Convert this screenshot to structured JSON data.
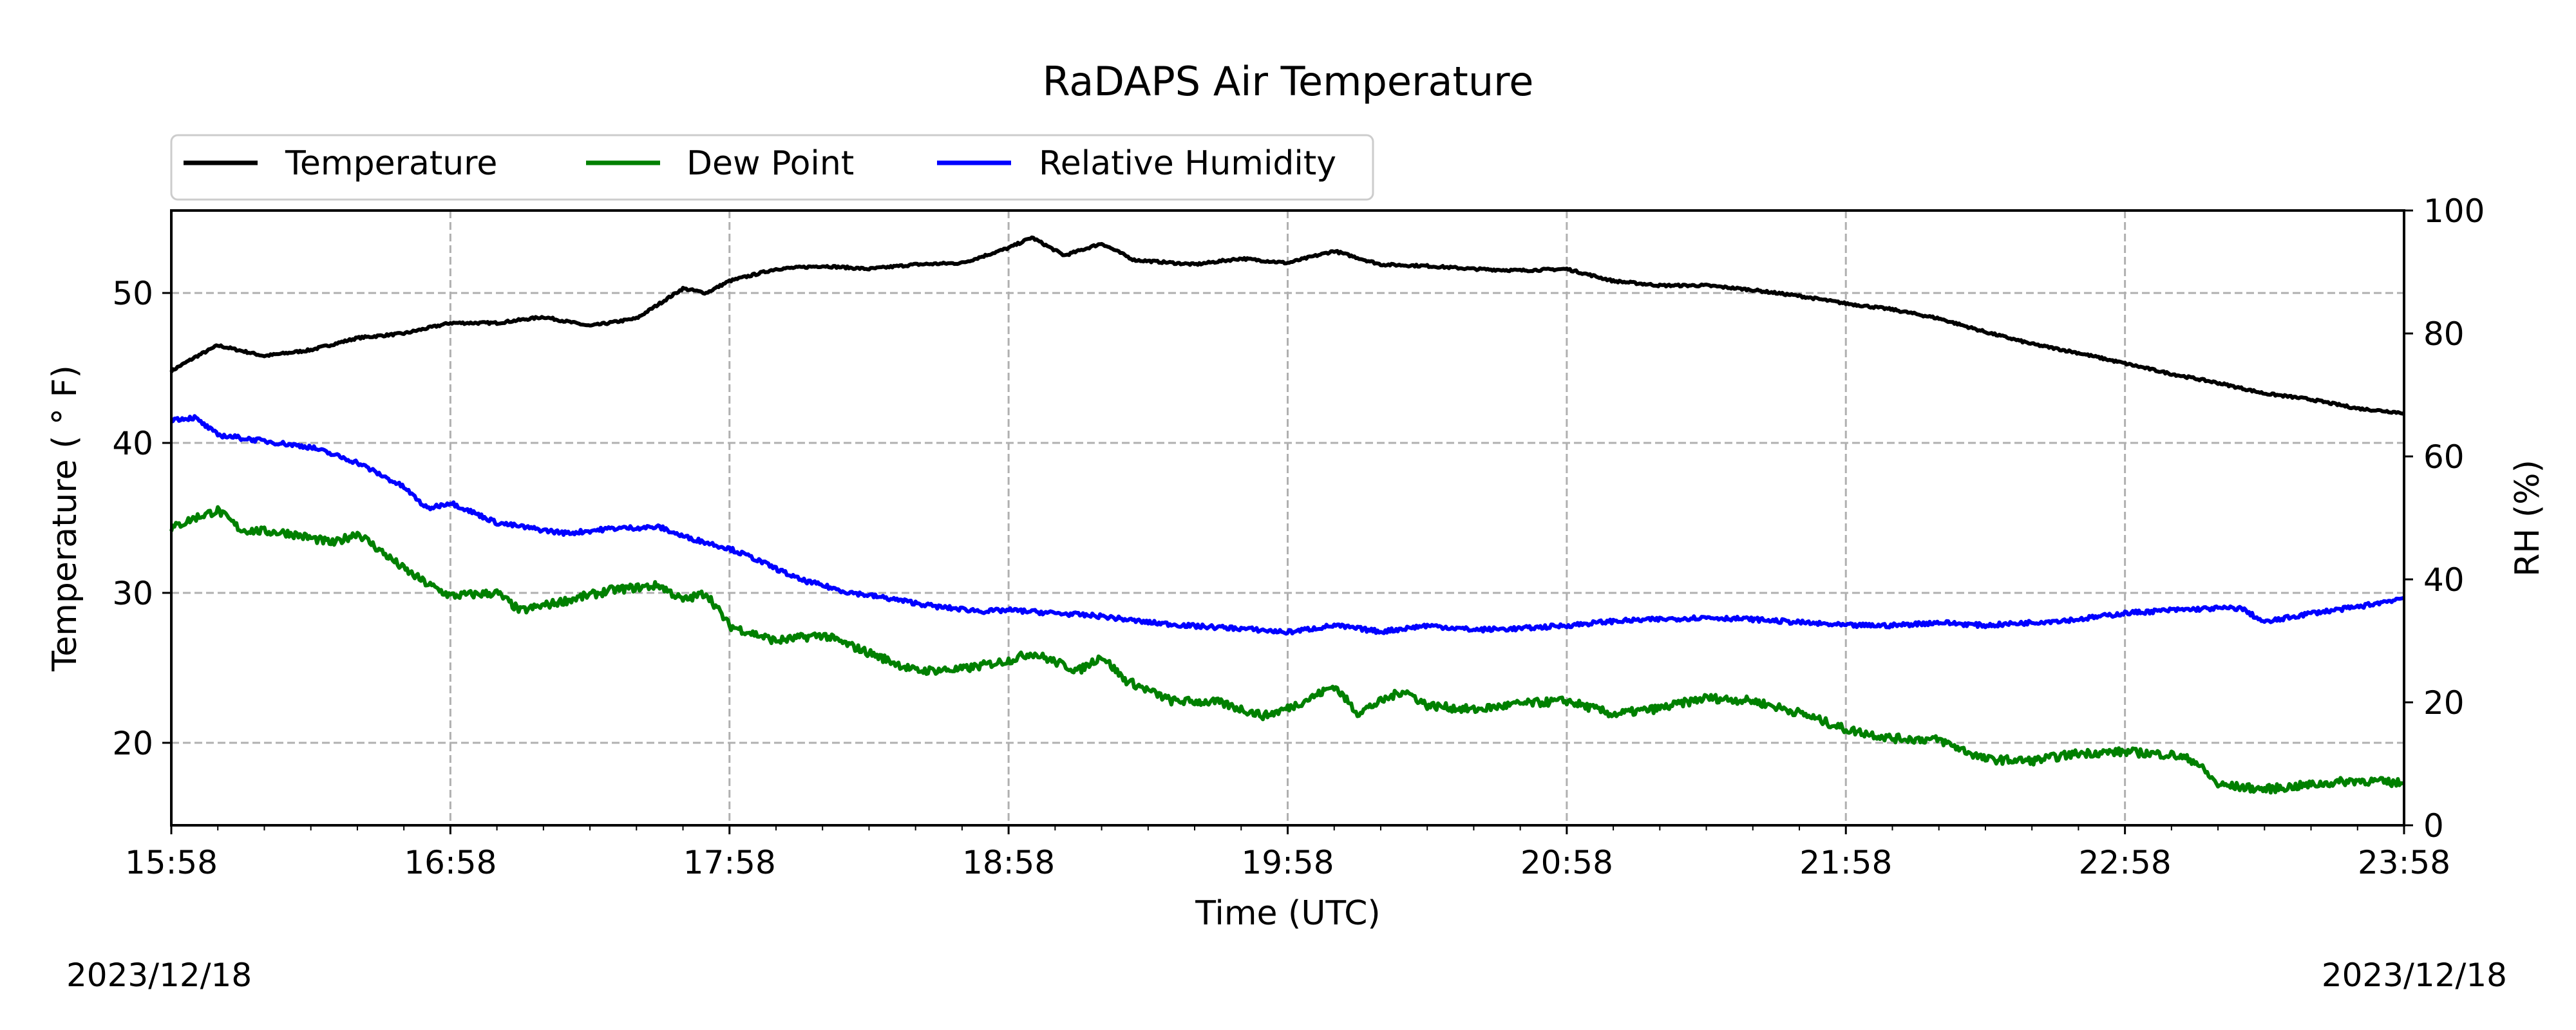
{
  "chart_data": {
    "type": "line",
    "title": "RaDAPS Air Temperature",
    "xlabel": "Time (UTC)",
    "ylabel": "Temperature ($^\\circ$F)",
    "ylabel_display": "Temperature ( ° F)",
    "y2label": "RH (%)",
    "x_ticks": [
      "15:58",
      "16:58",
      "17:58",
      "18:58",
      "19:58",
      "20:58",
      "21:58",
      "22:58",
      "23:58"
    ],
    "ylim": [
      14.5,
      55.5
    ],
    "y_ticks": [
      20,
      30,
      40,
      50
    ],
    "y2lim": [
      0,
      100
    ],
    "y2_ticks": [
      0,
      20,
      40,
      60,
      80,
      100
    ],
    "grid": true,
    "legend": {
      "placement": "above-left",
      "entries": [
        "Temperature",
        "Dew Point",
        "Relative Humidity"
      ]
    },
    "dates": {
      "left": "2023/12/18",
      "right": "2023/12/18"
    },
    "series": [
      {
        "name": "Temperature",
        "axis": "left",
        "color": "#000000",
        "points": [
          [
            "15:58",
            44.8
          ],
          [
            "16:03",
            45.7
          ],
          [
            "16:08",
            46.5
          ],
          [
            "16:18",
            45.8
          ],
          [
            "16:28",
            46.2
          ],
          [
            "16:38",
            47.0
          ],
          [
            "16:48",
            47.3
          ],
          [
            "16:58",
            48.0
          ],
          [
            "17:08",
            48.0
          ],
          [
            "17:18",
            48.4
          ],
          [
            "17:28",
            47.8
          ],
          [
            "17:38",
            48.3
          ],
          [
            "17:43",
            49.3
          ],
          [
            "17:48",
            50.3
          ],
          [
            "17:53",
            50.0
          ],
          [
            "17:58",
            50.8
          ],
          [
            "18:08",
            51.6
          ],
          [
            "18:18",
            51.8
          ],
          [
            "18:28",
            51.6
          ],
          [
            "18:38",
            51.9
          ],
          [
            "18:48",
            52.0
          ],
          [
            "18:58",
            53.0
          ],
          [
            "19:03",
            53.7
          ],
          [
            "19:10",
            52.5
          ],
          [
            "19:18",
            53.3
          ],
          [
            "19:25",
            52.2
          ],
          [
            "19:38",
            51.9
          ],
          [
            "19:48",
            52.3
          ],
          [
            "19:58",
            52.0
          ],
          [
            "20:08",
            52.8
          ],
          [
            "20:18",
            51.9
          ],
          [
            "20:28",
            51.8
          ],
          [
            "20:38",
            51.6
          ],
          [
            "20:48",
            51.5
          ],
          [
            "20:58",
            51.6
          ],
          [
            "21:08",
            50.8
          ],
          [
            "21:18",
            50.5
          ],
          [
            "21:28",
            50.5
          ],
          [
            "21:38",
            50.2
          ],
          [
            "21:48",
            49.8
          ],
          [
            "21:58",
            49.3
          ],
          [
            "22:08",
            48.9
          ],
          [
            "22:18",
            48.3
          ],
          [
            "22:28",
            47.4
          ],
          [
            "22:38",
            46.6
          ],
          [
            "22:48",
            46.0
          ],
          [
            "22:58",
            45.3
          ],
          [
            "23:08",
            44.6
          ],
          [
            "23:18",
            44.0
          ],
          [
            "23:28",
            43.3
          ],
          [
            "23:38",
            42.9
          ],
          [
            "23:48",
            42.3
          ],
          [
            "23:58",
            42.0
          ]
        ]
      },
      {
        "name": "Dew Point",
        "axis": "left",
        "color": "#008000",
        "points": [
          [
            "15:58",
            34.3
          ],
          [
            "16:03",
            35.0
          ],
          [
            "16:08",
            35.5
          ],
          [
            "16:13",
            34.2
          ],
          [
            "16:23",
            34.0
          ],
          [
            "16:33",
            33.3
          ],
          [
            "16:38",
            34.0
          ],
          [
            "16:43",
            32.8
          ],
          [
            "16:48",
            31.6
          ],
          [
            "16:53",
            30.6
          ],
          [
            "16:58",
            29.8
          ],
          [
            "17:08",
            30.0
          ],
          [
            "17:13",
            28.8
          ],
          [
            "17:23",
            29.5
          ],
          [
            "17:33",
            30.2
          ],
          [
            "17:43",
            30.5
          ],
          [
            "17:48",
            29.5
          ],
          [
            "17:53",
            30.0
          ],
          [
            "17:58",
            27.8
          ],
          [
            "18:08",
            26.8
          ],
          [
            "18:18",
            27.2
          ],
          [
            "18:28",
            26.0
          ],
          [
            "18:38",
            24.8
          ],
          [
            "18:48",
            24.9
          ],
          [
            "18:58",
            25.5
          ],
          [
            "19:03",
            26.0
          ],
          [
            "19:13",
            24.8
          ],
          [
            "19:18",
            25.8
          ],
          [
            "19:23",
            24.2
          ],
          [
            "19:33",
            22.8
          ],
          [
            "19:43",
            22.7
          ],
          [
            "19:53",
            21.8
          ],
          [
            "19:58",
            22.3
          ],
          [
            "20:03",
            23.0
          ],
          [
            "20:08",
            23.8
          ],
          [
            "20:13",
            22.0
          ],
          [
            "20:23",
            23.5
          ],
          [
            "20:28",
            22.5
          ],
          [
            "20:38",
            22.2
          ],
          [
            "20:48",
            22.6
          ],
          [
            "20:58",
            22.8
          ],
          [
            "21:08",
            21.9
          ],
          [
            "21:18",
            22.3
          ],
          [
            "21:28",
            23.0
          ],
          [
            "21:38",
            22.8
          ],
          [
            "21:48",
            22.0
          ],
          [
            "21:58",
            20.9
          ],
          [
            "22:08",
            20.3
          ],
          [
            "22:18",
            20.2
          ],
          [
            "22:28",
            18.9
          ],
          [
            "22:38",
            18.8
          ],
          [
            "22:48",
            19.3
          ],
          [
            "22:58",
            19.4
          ],
          [
            "23:08",
            19.2
          ],
          [
            "23:13",
            18.8
          ],
          [
            "23:18",
            17.2
          ],
          [
            "23:28",
            16.9
          ],
          [
            "23:38",
            17.2
          ],
          [
            "23:48",
            17.5
          ],
          [
            "23:58",
            17.3
          ]
        ]
      },
      {
        "name": "Relative Humidity",
        "axis": "right",
        "color": "#0000ff",
        "points": [
          [
            "15:58",
            66.0
          ],
          [
            "16:03",
            66.3
          ],
          [
            "16:08",
            63.5
          ],
          [
            "16:18",
            62.5
          ],
          [
            "16:28",
            61.5
          ],
          [
            "16:38",
            59.0
          ],
          [
            "16:48",
            55.0
          ],
          [
            "16:53",
            51.5
          ],
          [
            "16:58",
            52.5
          ],
          [
            "17:08",
            49.2
          ],
          [
            "17:18",
            48.0
          ],
          [
            "17:23",
            47.5
          ],
          [
            "17:33",
            48.3
          ],
          [
            "17:43",
            48.5
          ],
          [
            "17:48",
            47.0
          ],
          [
            "17:58",
            45.0
          ],
          [
            "18:03",
            43.5
          ],
          [
            "18:13",
            40.0
          ],
          [
            "18:23",
            38.0
          ],
          [
            "18:33",
            36.8
          ],
          [
            "18:43",
            35.5
          ],
          [
            "18:53",
            34.8
          ],
          [
            "18:58",
            35.0
          ],
          [
            "19:08",
            34.5
          ],
          [
            "19:18",
            34.0
          ],
          [
            "19:28",
            33.0
          ],
          [
            "19:38",
            32.4
          ],
          [
            "19:48",
            32.0
          ],
          [
            "19:58",
            31.4
          ],
          [
            "20:08",
            32.5
          ],
          [
            "20:18",
            31.5
          ],
          [
            "20:28",
            32.5
          ],
          [
            "20:38",
            31.8
          ],
          [
            "20:48",
            32.0
          ],
          [
            "20:58",
            32.5
          ],
          [
            "21:08",
            33.2
          ],
          [
            "21:18",
            33.5
          ],
          [
            "21:28",
            33.8
          ],
          [
            "21:38",
            33.5
          ],
          [
            "21:48",
            33.0
          ],
          [
            "21:58",
            32.5
          ],
          [
            "22:08",
            32.5
          ],
          [
            "22:18",
            33.0
          ],
          [
            "22:28",
            32.5
          ],
          [
            "22:38",
            33.0
          ],
          [
            "22:48",
            33.5
          ],
          [
            "22:58",
            34.5
          ],
          [
            "23:08",
            35.0
          ],
          [
            "23:18",
            35.3
          ],
          [
            "23:23",
            35.3
          ],
          [
            "23:28",
            33.0
          ],
          [
            "23:38",
            34.5
          ],
          [
            "23:48",
            35.5
          ],
          [
            "23:58",
            37.0
          ]
        ]
      }
    ]
  }
}
